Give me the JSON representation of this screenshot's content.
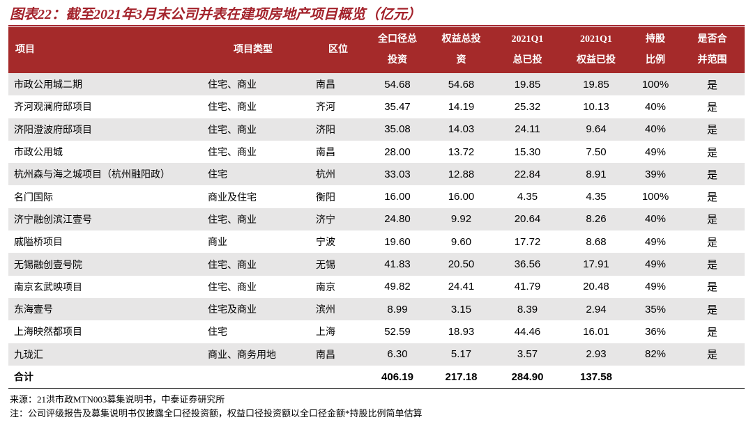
{
  "header": {
    "title": "图表22：截至2021年3月末公司并表在建项房地产项目概览（亿元）"
  },
  "table": {
    "columns": [
      [
        "项目"
      ],
      [
        "项目类型"
      ],
      [
        "区位"
      ],
      [
        "全口径总",
        "投资"
      ],
      [
        "权益总投",
        "资"
      ],
      [
        "2021Q1",
        "总已投"
      ],
      [
        "2021Q1",
        "权益已投"
      ],
      [
        "持股",
        "比例"
      ],
      [
        "是否合",
        "并范围"
      ]
    ],
    "rows": [
      [
        "市政公用城二期",
        "住宅、商业",
        "南昌",
        "54.68",
        "54.68",
        "19.85",
        "19.85",
        "100%",
        "是"
      ],
      [
        "齐河观澜府邸项目",
        "住宅、商业",
        "齐河",
        "35.47",
        "14.19",
        "25.32",
        "10.13",
        "40%",
        "是"
      ],
      [
        "济阳澄波府邸项目",
        "住宅、商业",
        "济阳",
        "35.08",
        "14.03",
        "24.11",
        "9.64",
        "40%",
        "是"
      ],
      [
        "市政公用城",
        "住宅、商业",
        "南昌",
        "28.00",
        "13.72",
        "15.30",
        "7.50",
        "49%",
        "是"
      ],
      [
        "杭州森与海之城项目（杭州融阳政）",
        "住宅",
        "杭州",
        "33.03",
        "12.88",
        "22.84",
        "8.91",
        "39%",
        "是"
      ],
      [
        "名门国际",
        "商业及住宅",
        "衡阳",
        "16.00",
        "16.00",
        "4.35",
        "4.35",
        "100%",
        "是"
      ],
      [
        "济宁融创滨江壹号",
        "住宅、商业",
        "济宁",
        "24.80",
        "9.92",
        "20.64",
        "8.26",
        "40%",
        "是"
      ],
      [
        "戚隘桥项目",
        "商业",
        "宁波",
        "19.60",
        "9.60",
        "17.72",
        "8.68",
        "49%",
        "是"
      ],
      [
        "无锡融创壹号院",
        "住宅、商业",
        "无锡",
        "41.83",
        "20.50",
        "36.56",
        "17.91",
        "49%",
        "是"
      ],
      [
        "南京玄武映项目",
        "住宅、商业",
        "南京",
        "49.82",
        "24.41",
        "41.79",
        "20.48",
        "49%",
        "是"
      ],
      [
        "东海壹号",
        "住宅及商业",
        "滨州",
        "8.99",
        "3.15",
        "8.39",
        "2.94",
        "35%",
        "是"
      ],
      [
        "上海映然都项目",
        "住宅",
        "上海",
        "52.59",
        "18.93",
        "44.46",
        "16.01",
        "36%",
        "是"
      ],
      [
        "九珑汇",
        "商业、商务用地",
        "南昌",
        "6.30",
        "5.17",
        "3.57",
        "2.93",
        "82%",
        "是"
      ]
    ],
    "total": {
      "label": "合计",
      "values": [
        "406.19",
        "217.18",
        "284.90",
        "137.58"
      ]
    }
  },
  "footer": {
    "source": "来源：21洪市政MTN003募集说明书，中泰证券研究所",
    "note": "注：公司评级报告及募集说明书仅披露全口径投资额，权益口径投资额以全口径金额*持股比例简单估算"
  }
}
